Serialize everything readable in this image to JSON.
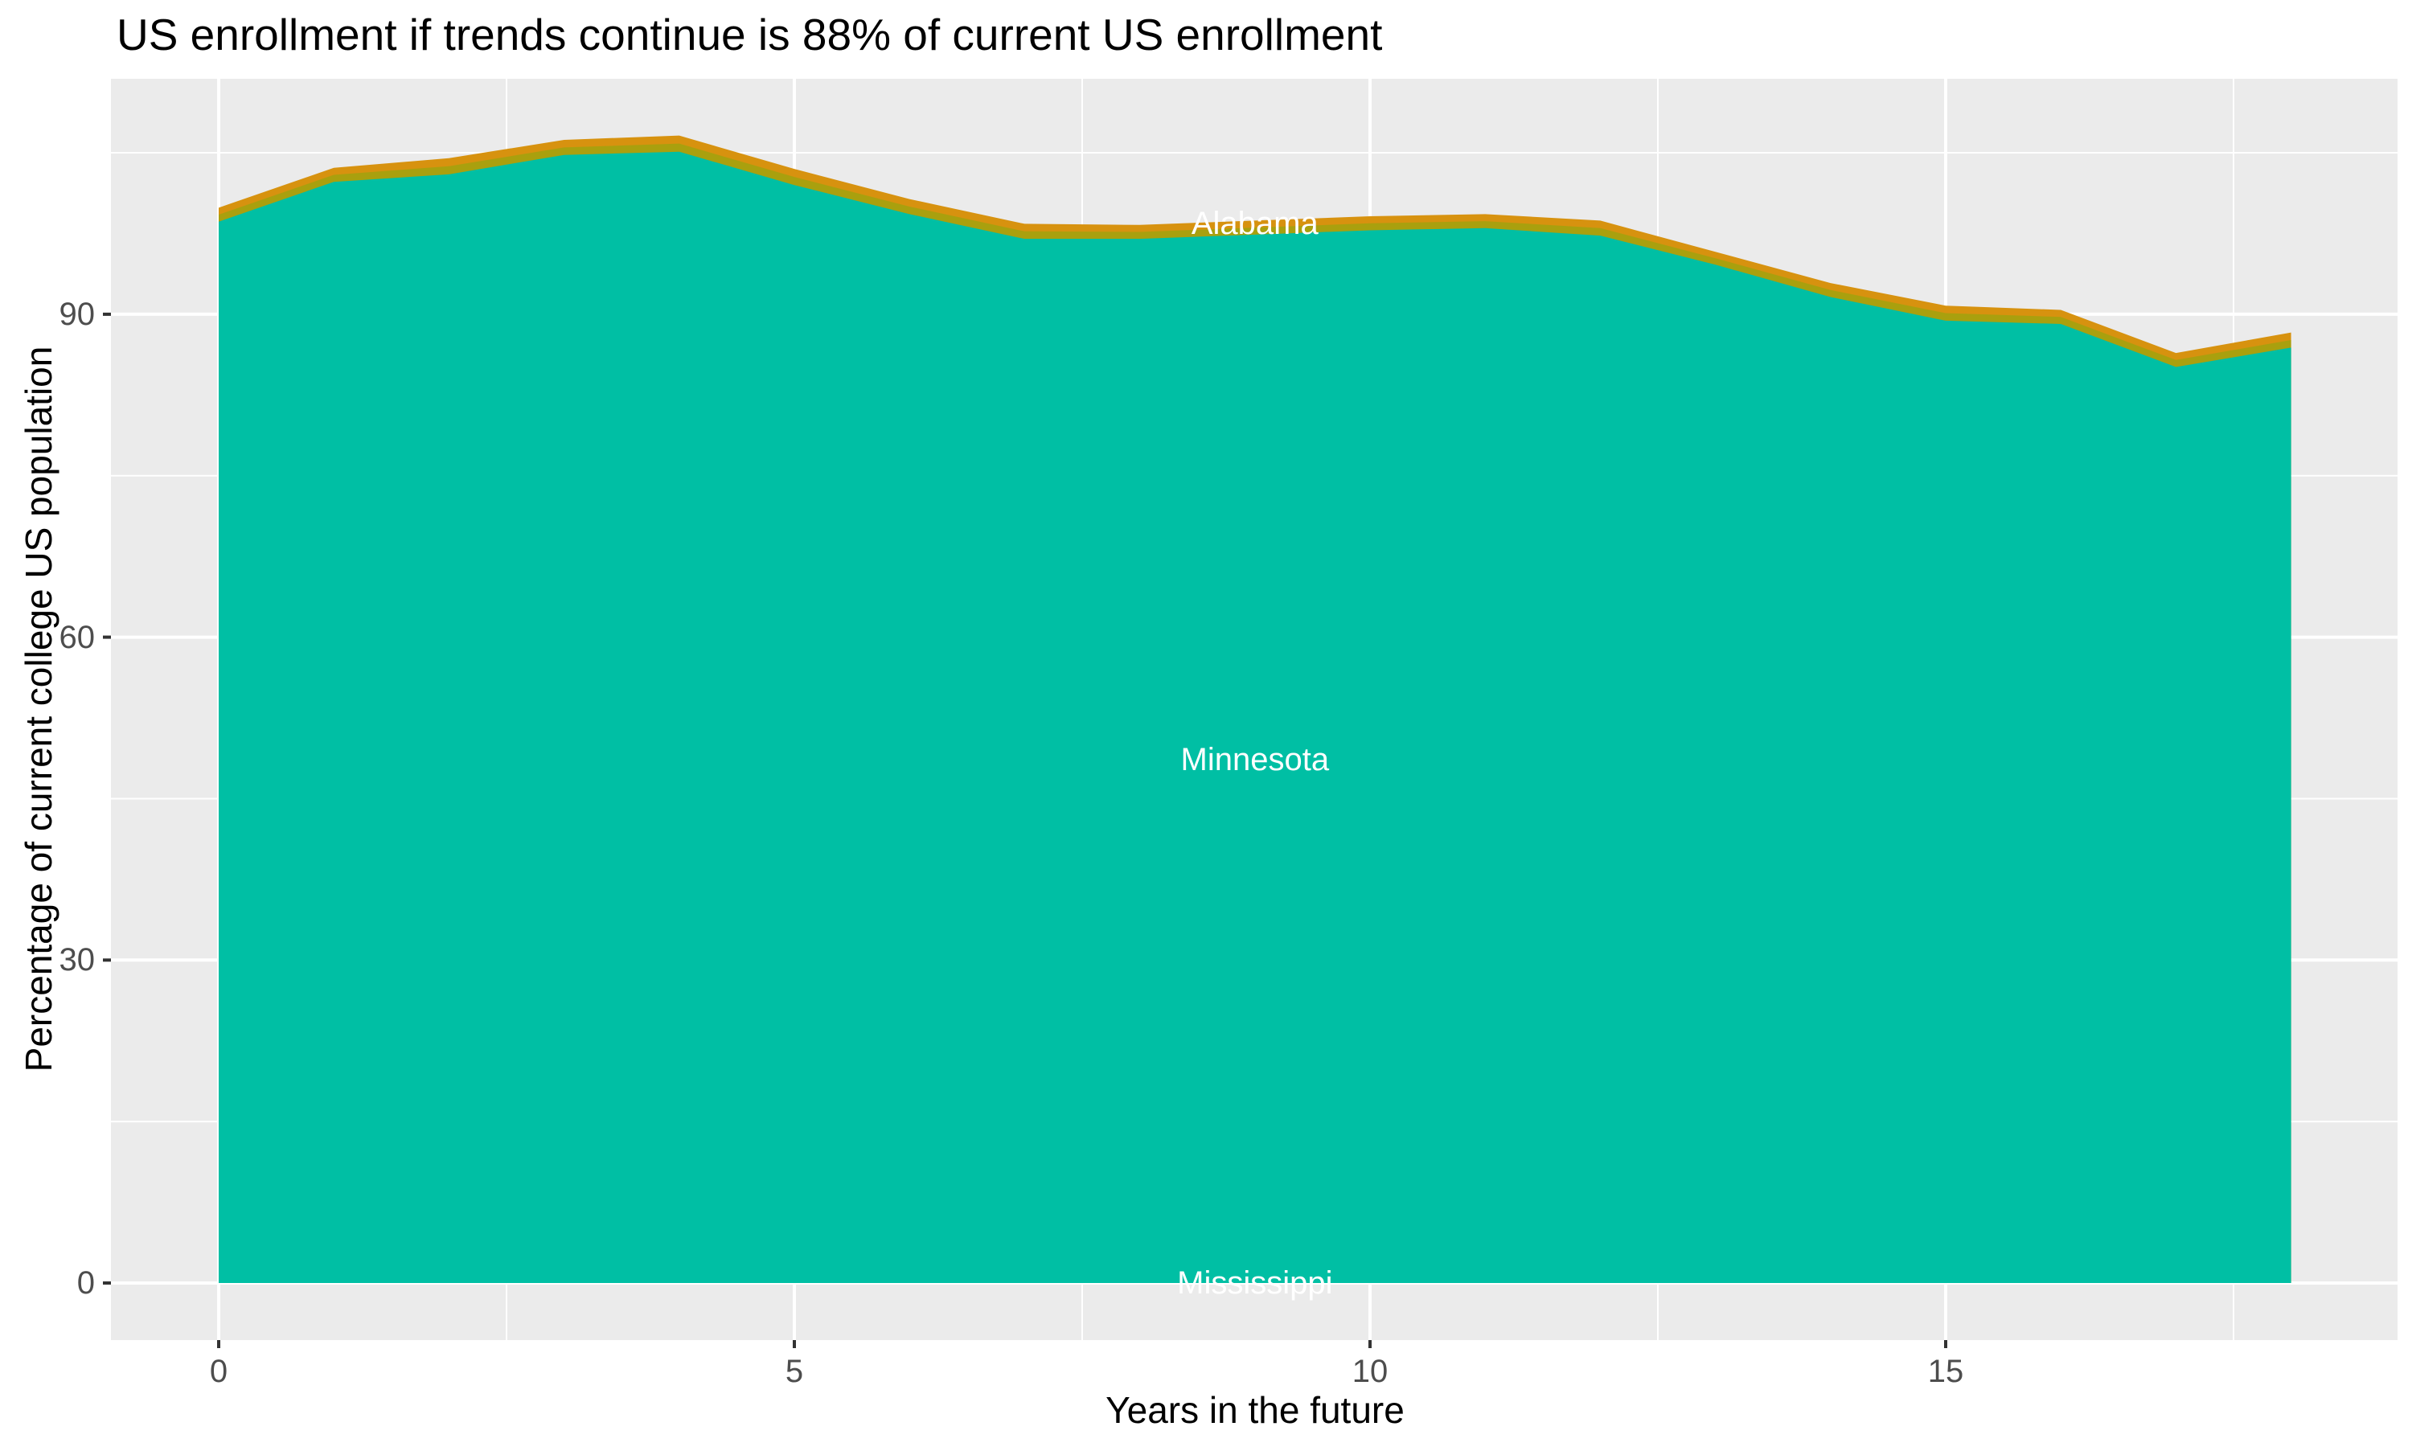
{
  "chart_data": {
    "type": "area",
    "stacked": true,
    "title": "US enrollment if trends continue is 88% of current US enrollment",
    "xlabel": "Years in the future",
    "ylabel": "Percentage of current college US population",
    "x": [
      0,
      1,
      2,
      3,
      4,
      5,
      6,
      7,
      8,
      9,
      10,
      11,
      12,
      13,
      14,
      15,
      16,
      17,
      18
    ],
    "x_ticks": [
      0,
      5,
      10,
      15
    ],
    "x_minor_ticks": [
      2.5,
      7.5,
      12.5,
      17.5
    ],
    "y_ticks": [
      0,
      30,
      60,
      90
    ],
    "y_minor_ticks": [
      15,
      45,
      75,
      105
    ],
    "xlim": [
      -0.9,
      18.9
    ],
    "ylim": [
      -5.4,
      112.3
    ],
    "grid": "on",
    "legend": "none",
    "series": [
      {
        "name": "Mississippi",
        "values": [
          0,
          0,
          0,
          0,
          0,
          0,
          0,
          0,
          0,
          0,
          0,
          0,
          0,
          0,
          0,
          0,
          0,
          0,
          0
        ]
      },
      {
        "name": "Minnesota",
        "color": "#00BFA4",
        "values": [
          98.6,
          102.3,
          103.0,
          104.8,
          105.1,
          102.0,
          99.3,
          97.0,
          97.0,
          97.4,
          97.8,
          98.0,
          97.3,
          94.6,
          91.6,
          89.4,
          89.1,
          85.1,
          86.9
        ]
      },
      {
        "name": "Alabama",
        "band_colors": [
          "#A9A00E",
          "#D7920F"
        ],
        "values": [
          1.3,
          1.3,
          1.5,
          1.4,
          1.5,
          1.5,
          1.4,
          1.4,
          1.3,
          1.3,
          1.3,
          1.3,
          1.4,
          1.2,
          1.3,
          1.4,
          1.3,
          1.3,
          1.4
        ]
      }
    ],
    "stack_totals": [
      99.9,
      103.6,
      104.5,
      106.2,
      106.6,
      103.5,
      100.7,
      98.4,
      98.3,
      98.7,
      99.1,
      99.3,
      98.7,
      95.8,
      92.9,
      90.8,
      90.4,
      86.4,
      88.3
    ],
    "annotations": [
      {
        "text": "Alabama",
        "x": 9,
        "y": 98.4,
        "color": "#FFFFFF"
      },
      {
        "text": "Minnesota",
        "x": 9,
        "y": 48.6,
        "color": "#FFFFFF"
      },
      {
        "text": "Mississippi",
        "x": 9,
        "y": 0,
        "color": "#FFFFFF"
      }
    ],
    "colors": {
      "panel": "#EBEBEB",
      "grid": "#FFFFFF",
      "tick_mark": "#333333",
      "tick_text": "#4D4D4D",
      "title_text": "#000000",
      "background": "#FFFFFF"
    }
  }
}
